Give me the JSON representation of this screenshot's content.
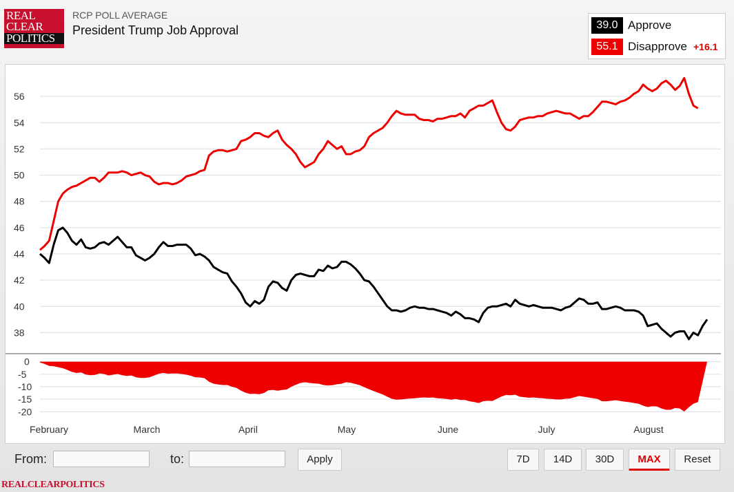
{
  "header": {
    "logo_lines": [
      "REAL",
      "CLEAR",
      "POLITICS"
    ],
    "kicker": "RCP POLL AVERAGE",
    "title": "President Trump Job Approval"
  },
  "legend": {
    "approve": {
      "value": "39.0",
      "label": "Approve",
      "color": "#000000"
    },
    "disapprove": {
      "value": "55.1",
      "label": "Disapprove",
      "color": "#ee0000"
    },
    "spread": "+16.1"
  },
  "controls": {
    "from_label": "From:",
    "from_value": "",
    "to_label": "to:",
    "to_value": "",
    "apply_label": "Apply",
    "ranges": [
      {
        "label": "7D",
        "active": false
      },
      {
        "label": "14D",
        "active": false
      },
      {
        "label": "30D",
        "active": false
      },
      {
        "label": "MAX",
        "active": true
      },
      {
        "label": "Reset",
        "active": false
      }
    ]
  },
  "footer": {
    "brand": "REALCLEARPOLITICS"
  },
  "chart_data": {
    "type": "line",
    "x_tick_labels": [
      "February",
      "March",
      "April",
      "May",
      "June",
      "July",
      "August"
    ],
    "main_y_ticks": [
      38,
      40,
      42,
      44,
      46,
      48,
      50,
      52,
      54,
      56
    ],
    "main_ylim": [
      36.5,
      58
    ],
    "spread_y_ticks": [
      0,
      -5,
      -10,
      -15,
      -20
    ],
    "spread_ylim": [
      -21,
      1
    ],
    "grid": true,
    "series": [
      {
        "name": "Approve",
        "color": "#000000",
        "values": [
          44.0,
          43.7,
          43.3,
          44.7,
          45.8,
          46.0,
          45.6,
          45.0,
          44.7,
          45.1,
          44.5,
          44.4,
          44.5,
          44.8,
          44.9,
          44.7,
          45.0,
          45.3,
          44.9,
          44.5,
          44.5,
          43.9,
          43.7,
          43.5,
          43.7,
          44.0,
          44.5,
          44.9,
          44.6,
          44.6,
          44.7,
          44.7,
          44.7,
          44.4,
          43.9,
          44.0,
          43.8,
          43.5,
          43.0,
          42.8,
          42.6,
          42.5,
          41.9,
          41.5,
          41.0,
          40.3,
          40.0,
          40.4,
          40.2,
          40.5,
          41.5,
          41.9,
          41.8,
          41.4,
          41.2,
          42.0,
          42.4,
          42.5,
          42.4,
          42.3,
          42.3,
          42.8,
          42.7,
          43.1,
          42.9,
          43.0,
          43.4,
          43.4,
          43.2,
          42.9,
          42.5,
          42.0,
          41.9,
          41.5,
          41.0,
          40.5,
          40.0,
          39.7,
          39.7,
          39.6,
          39.7,
          39.9,
          40.0,
          39.9,
          39.9,
          39.8,
          39.8,
          39.7,
          39.6,
          39.5,
          39.3,
          39.6,
          39.4,
          39.1,
          39.1,
          39.0,
          38.8,
          39.5,
          39.9,
          40.0,
          40.0,
          40.1,
          40.2,
          40.0,
          40.5,
          40.2,
          40.1,
          40.0,
          40.1,
          40.0,
          39.9,
          39.9,
          39.9,
          39.8,
          39.7,
          39.9,
          40.0,
          40.3,
          40.6,
          40.5,
          40.2,
          40.2,
          40.3,
          39.8,
          39.8,
          39.9,
          40.0,
          39.9,
          39.7,
          39.7,
          39.7,
          39.6,
          39.3,
          38.5,
          38.6,
          38.7,
          38.3,
          38.0,
          37.7,
          38.0,
          38.1,
          38.1,
          37.5,
          38.0,
          37.8,
          38.5,
          39.0
        ]
      },
      {
        "name": "Disapprove",
        "color": "#ee0000",
        "values": [
          44.3,
          44.6,
          45.0,
          46.5,
          48.0,
          48.6,
          48.9,
          49.1,
          49.2,
          49.4,
          49.6,
          49.8,
          49.8,
          49.5,
          49.8,
          50.2,
          50.2,
          50.2,
          50.3,
          50.2,
          50.0,
          50.1,
          50.2,
          50.0,
          49.9,
          49.5,
          49.3,
          49.4,
          49.4,
          49.3,
          49.4,
          49.6,
          49.9,
          50.0,
          50.1,
          50.3,
          50.4,
          51.5,
          51.8,
          51.9,
          51.9,
          51.8,
          51.9,
          52.0,
          52.6,
          52.7,
          52.9,
          53.2,
          53.2,
          53.0,
          52.9,
          53.2,
          53.4,
          52.7,
          52.3,
          52.0,
          51.6,
          51.0,
          50.6,
          50.8,
          51.0,
          51.6,
          52.0,
          52.6,
          52.3,
          52.0,
          52.2,
          51.6,
          51.6,
          51.8,
          51.9,
          52.2,
          52.9,
          53.2,
          53.4,
          53.6,
          54.0,
          54.5,
          54.9,
          54.7,
          54.6,
          54.6,
          54.6,
          54.3,
          54.2,
          54.2,
          54.1,
          54.3,
          54.3,
          54.4,
          54.5,
          54.5,
          54.7,
          54.4,
          54.9,
          55.1,
          55.3,
          55.3,
          55.5,
          55.7,
          54.8,
          54.0,
          53.5,
          53.4,
          53.7,
          54.2,
          54.3,
          54.4,
          54.4,
          54.5,
          54.5,
          54.7,
          54.8,
          54.9,
          54.8,
          54.7,
          54.7,
          54.5,
          54.3,
          54.5,
          54.5,
          54.8,
          55.2,
          55.6,
          55.6,
          55.5,
          55.4,
          55.6,
          55.7,
          55.9,
          56.2,
          56.4,
          56.9,
          56.6,
          56.4,
          56.6,
          57.0,
          57.2,
          56.9,
          56.5,
          56.8,
          57.4,
          56.2,
          55.3,
          55.1
        ]
      },
      {
        "name": "Spread",
        "color": "#ee0000",
        "values": [
          -0.3,
          -0.9,
          -1.7,
          -1.8,
          -2.2,
          -2.6,
          -3.3,
          -4.1,
          -4.5,
          -4.3,
          -5.1,
          -5.4,
          -5.3,
          -4.7,
          -4.9,
          -5.5,
          -5.2,
          -4.9,
          -5.4,
          -5.7,
          -5.5,
          -6.2,
          -6.5,
          -6.5,
          -6.2,
          -5.5,
          -4.8,
          -4.5,
          -4.8,
          -4.7,
          -4.7,
          -4.9,
          -5.2,
          -5.6,
          -6.2,
          -6.3,
          -6.6,
          -8.0,
          -8.8,
          -9.1,
          -9.3,
          -9.3,
          -10.0,
          -10.5,
          -11.6,
          -12.4,
          -12.9,
          -12.8,
          -13.0,
          -12.5,
          -11.4,
          -11.3,
          -11.6,
          -11.3,
          -11.1,
          -10.0,
          -9.2,
          -8.5,
          -8.2,
          -8.5,
          -8.7,
          -8.8,
          -9.3,
          -9.5,
          -9.4,
          -9.0,
          -8.8,
          -8.2,
          -8.4,
          -8.9,
          -9.4,
          -10.2,
          -11.0,
          -11.7,
          -12.4,
          -13.1,
          -14.0,
          -14.8,
          -15.2,
          -15.1,
          -14.9,
          -14.7,
          -14.6,
          -14.4,
          -14.3,
          -14.4,
          -14.3,
          -14.6,
          -14.7,
          -14.9,
          -15.2,
          -14.9,
          -15.3,
          -15.3,
          -15.8,
          -16.1,
          -16.5,
          -15.8,
          -15.6,
          -15.7,
          -14.8,
          -13.9,
          -13.3,
          -13.4,
          -13.2,
          -14.0,
          -14.2,
          -14.4,
          -14.3,
          -14.5,
          -14.6,
          -14.8,
          -14.9,
          -15.1,
          -15.1,
          -14.8,
          -14.7,
          -14.2,
          -13.7,
          -14.0,
          -14.3,
          -14.6,
          -14.9,
          -15.8,
          -15.8,
          -15.6,
          -15.4,
          -15.7,
          -16.0,
          -16.2,
          -16.5,
          -16.8,
          -17.6,
          -18.1,
          -17.8,
          -17.9,
          -18.7,
          -19.2,
          -19.2,
          -18.5,
          -18.7,
          -19.9,
          -18.2,
          -16.8,
          -16.1
        ]
      }
    ]
  }
}
